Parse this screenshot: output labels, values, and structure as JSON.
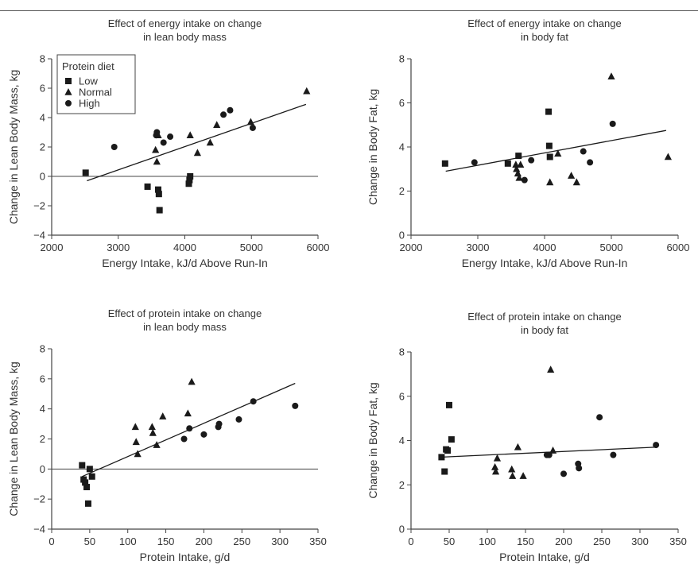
{
  "chart_data": [
    {
      "type": "scatter",
      "title_lines": [
        "Effect of energy intake on change",
        "in lean body mass"
      ],
      "xlabel": "Energy Intake, kJ/d Above Run-In",
      "ylabel": "Change in Lean Body Mass, kg",
      "xlim": [
        2000,
        6000
      ],
      "ylim": [
        -4,
        8
      ],
      "xticks": [
        2000,
        3000,
        4000,
        5000,
        6000
      ],
      "yticks": [
        -4,
        -2,
        0,
        2,
        4,
        6,
        8
      ],
      "zero_line": true,
      "grid": false,
      "legend": {
        "title": "Protein diet",
        "placement": "top-left",
        "entries": [
          {
            "label": "Low",
            "marker": "square"
          },
          {
            "label": "Normal",
            "marker": "triangle"
          },
          {
            "label": "High",
            "marker": "circle"
          }
        ]
      },
      "trendline": [
        [
          2530,
          -0.3
        ],
        [
          5820,
          4.9
        ]
      ],
      "series": [
        {
          "name": "Low",
          "marker": "square",
          "x": [
            2510,
            3440,
            3600,
            3610,
            3620,
            4060,
            4070,
            4080
          ],
          "y": [
            0.25,
            -0.7,
            -0.9,
            -1.2,
            -2.3,
            -0.5,
            -0.25,
            0.0
          ]
        },
        {
          "name": "Normal",
          "marker": "triangle",
          "x": [
            3560,
            3580,
            3600,
            4080,
            4190,
            4380,
            4480,
            4990,
            5830
          ],
          "y": [
            1.8,
            1.0,
            2.8,
            2.8,
            1.6,
            2.3,
            3.5,
            3.7,
            5.8
          ]
        },
        {
          "name": "High",
          "marker": "circle",
          "x": [
            2940,
            3570,
            3580,
            3680,
            3780,
            4580,
            4680,
            5020
          ],
          "y": [
            2.0,
            2.8,
            3.0,
            2.3,
            2.7,
            4.2,
            4.5,
            3.3
          ]
        }
      ]
    },
    {
      "type": "scatter",
      "title_lines": [
        "Effect of energy intake on change",
        "in body fat"
      ],
      "xlabel": "Energy Intake, kJ/d Above Run-In",
      "ylabel": "Change in Body Fat, kg",
      "xlim": [
        2000,
        6000
      ],
      "ylim": [
        0,
        8
      ],
      "xticks": [
        2000,
        3000,
        4000,
        5000,
        6000
      ],
      "yticks": [
        0,
        2,
        4,
        6,
        8
      ],
      "zero_line": false,
      "grid": false,
      "trendline": [
        [
          2520,
          2.9
        ],
        [
          5820,
          4.75
        ]
      ],
      "series": [
        {
          "name": "Low",
          "marker": "square",
          "x": [
            2510,
            3450,
            3610,
            4060,
            4070,
            4080
          ],
          "y": [
            3.25,
            3.25,
            3.6,
            5.6,
            4.05,
            3.55
          ]
        },
        {
          "name": "Normal",
          "marker": "triangle",
          "x": [
            3570,
            3580,
            3600,
            3620,
            3640,
            4080,
            4200,
            4400,
            4480,
            5000,
            5850
          ],
          "y": [
            3.2,
            3.0,
            2.8,
            2.6,
            3.2,
            2.4,
            3.7,
            2.7,
            2.4,
            7.2,
            3.55
          ]
        },
        {
          "name": "High",
          "marker": "circle",
          "x": [
            2950,
            3700,
            3800,
            4580,
            4680,
            5020
          ],
          "y": [
            3.3,
            2.5,
            3.4,
            3.8,
            3.3,
            5.05
          ]
        }
      ]
    },
    {
      "type": "scatter",
      "title_lines": [
        "Effect of protein intake on change",
        "in lean body mass"
      ],
      "xlabel": "Protein Intake, g/d",
      "ylabel": "Change in Lean Body Mass, kg",
      "xlim": [
        0,
        350
      ],
      "ylim": [
        -4,
        8
      ],
      "xticks": [
        0,
        50,
        100,
        150,
        200,
        250,
        300,
        350
      ],
      "yticks": [
        -4,
        -2,
        0,
        2,
        4,
        6,
        8
      ],
      "zero_line": true,
      "grid": false,
      "trendline": [
        [
          40,
          -0.5
        ],
        [
          320,
          5.7
        ]
      ],
      "series": [
        {
          "name": "Low",
          "marker": "square",
          "x": [
            40,
            42,
            44,
            46,
            48,
            50,
            53
          ],
          "y": [
            0.25,
            -0.7,
            -0.9,
            -1.2,
            -2.3,
            0.0,
            -0.5
          ]
        },
        {
          "name": "Normal",
          "marker": "triangle",
          "x": [
            110,
            111,
            113,
            132,
            133,
            138,
            146,
            179,
            184
          ],
          "y": [
            2.8,
            1.8,
            1.0,
            2.8,
            2.4,
            1.6,
            3.5,
            3.7,
            5.8
          ]
        },
        {
          "name": "High",
          "marker": "circle",
          "x": [
            174,
            181,
            200,
            219,
            220,
            246,
            265,
            320
          ],
          "y": [
            2.0,
            2.7,
            2.3,
            2.8,
            3.0,
            3.3,
            4.5,
            4.2
          ]
        }
      ]
    },
    {
      "type": "scatter",
      "title_lines": [
        "Effect of protein intake on change",
        "in body fat"
      ],
      "xlabel": "Protein Intake, g/d",
      "ylabel": "Change in Body Fat, kg",
      "xlim": [
        0,
        350
      ],
      "ylim": [
        0,
        8
      ],
      "xticks": [
        0,
        50,
        100,
        150,
        200,
        250,
        300,
        350
      ],
      "yticks": [
        0,
        2,
        4,
        6,
        8
      ],
      "zero_line": false,
      "grid": false,
      "trendline": [
        [
          40,
          3.25
        ],
        [
          320,
          3.7
        ]
      ],
      "series": [
        {
          "name": "Low",
          "marker": "square",
          "x": [
            40,
            44,
            46,
            48,
            50,
            53
          ],
          "y": [
            3.25,
            2.6,
            3.6,
            3.55,
            5.6,
            4.05
          ]
        },
        {
          "name": "Normal",
          "marker": "triangle",
          "x": [
            110,
            111,
            113,
            132,
            133,
            140,
            147,
            183,
            186
          ],
          "y": [
            2.8,
            2.6,
            3.2,
            2.7,
            2.4,
            3.7,
            2.4,
            7.2,
            3.55
          ]
        },
        {
          "name": "High",
          "marker": "circle",
          "x": [
            178,
            181,
            200,
            219,
            220,
            247,
            265,
            321
          ],
          "y": [
            3.35,
            3.35,
            2.5,
            2.95,
            2.75,
            5.05,
            3.35,
            3.8
          ]
        }
      ]
    }
  ]
}
